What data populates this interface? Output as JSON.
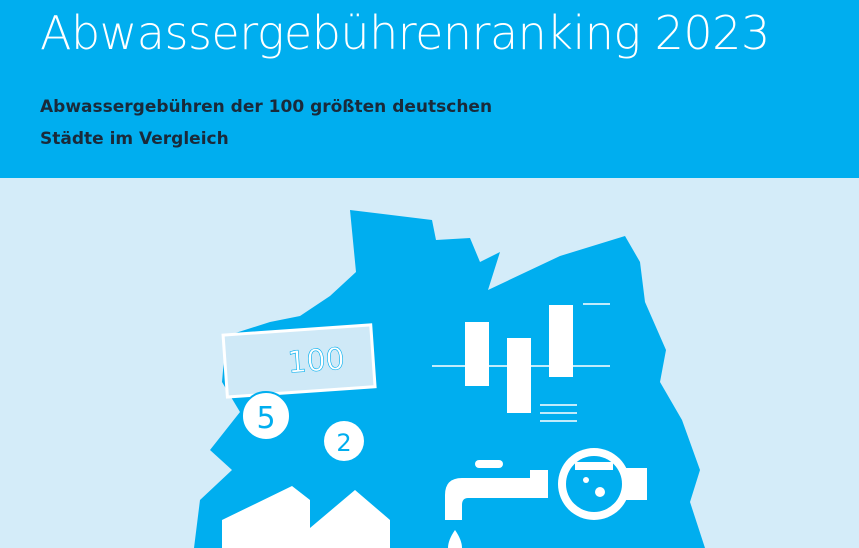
{
  "header": {
    "title": "Abwassergebührenranking 2023",
    "subtitle": [
      "Abwassergebühren der 100 größten deutschen",
      "Städte im Vergleich"
    ]
  },
  "illustration": {
    "banknote": "100",
    "coins": [
      "5",
      "2"
    ]
  }
}
